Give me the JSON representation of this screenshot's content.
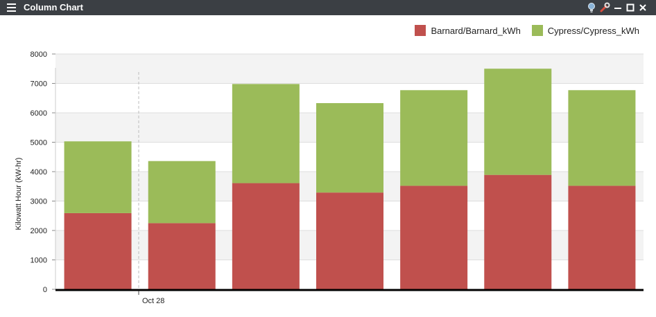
{
  "window": {
    "title": "Column Chart",
    "controls": [
      "lightbulb-icon",
      "wrench-icon",
      "minimize-icon",
      "maximize-icon",
      "close-icon"
    ]
  },
  "colors": {
    "titlebar": "#3b3f44",
    "barnard": "#c0504d",
    "cypress": "#9bbb59",
    "band": "#f3f3f3",
    "topband": "#ececec",
    "grid": "#dddddd",
    "axis": "#000000"
  },
  "chart_data": {
    "type": "bar",
    "stacked": true,
    "title": "",
    "ylabel": "Kilowatt Hour (kW-hr)",
    "xlabel": "",
    "ylim": [
      0,
      8000
    ],
    "yticks": [
      0,
      1000,
      2000,
      3000,
      4000,
      5000,
      6000,
      7000,
      8000
    ],
    "x_tick_label": "Oct 28",
    "grid": true,
    "legend_position": "top-right",
    "series": [
      {
        "name": "Barnard/Barnard_kWh",
        "color": "#c0504d",
        "values": [
          2590,
          2250,
          3610,
          3290,
          3520,
          3890,
          3520
        ]
      },
      {
        "name": "Cypress/Cypress_kWh",
        "color": "#9bbb59",
        "values": [
          2440,
          2110,
          3370,
          3040,
          3250,
          3610,
          3250
        ]
      }
    ]
  }
}
